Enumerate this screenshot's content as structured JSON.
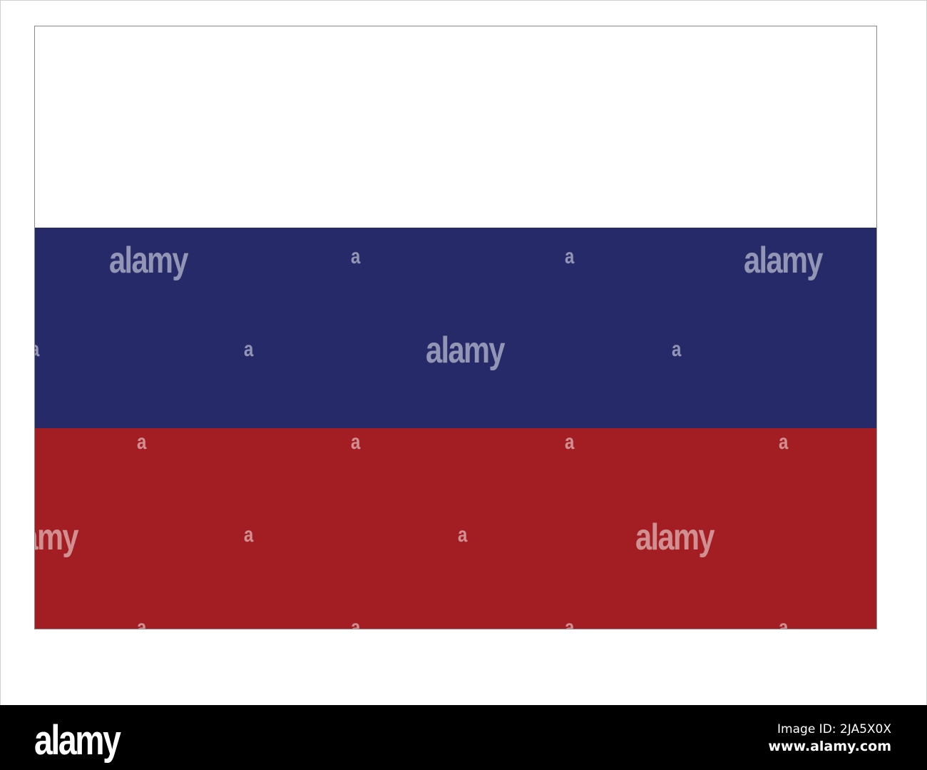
{
  "flag": {
    "stripes": [
      {
        "name": "white",
        "color": "#ffffff"
      },
      {
        "name": "blue",
        "color": "#262a68"
      },
      {
        "name": "red",
        "color": "#a21e23"
      }
    ]
  },
  "watermark": {
    "word": "alamy",
    "letter": "a"
  },
  "footer": {
    "logo": "alamy",
    "image_id": "Image ID: 2JA5X0X",
    "url": "www.alamy.com"
  }
}
